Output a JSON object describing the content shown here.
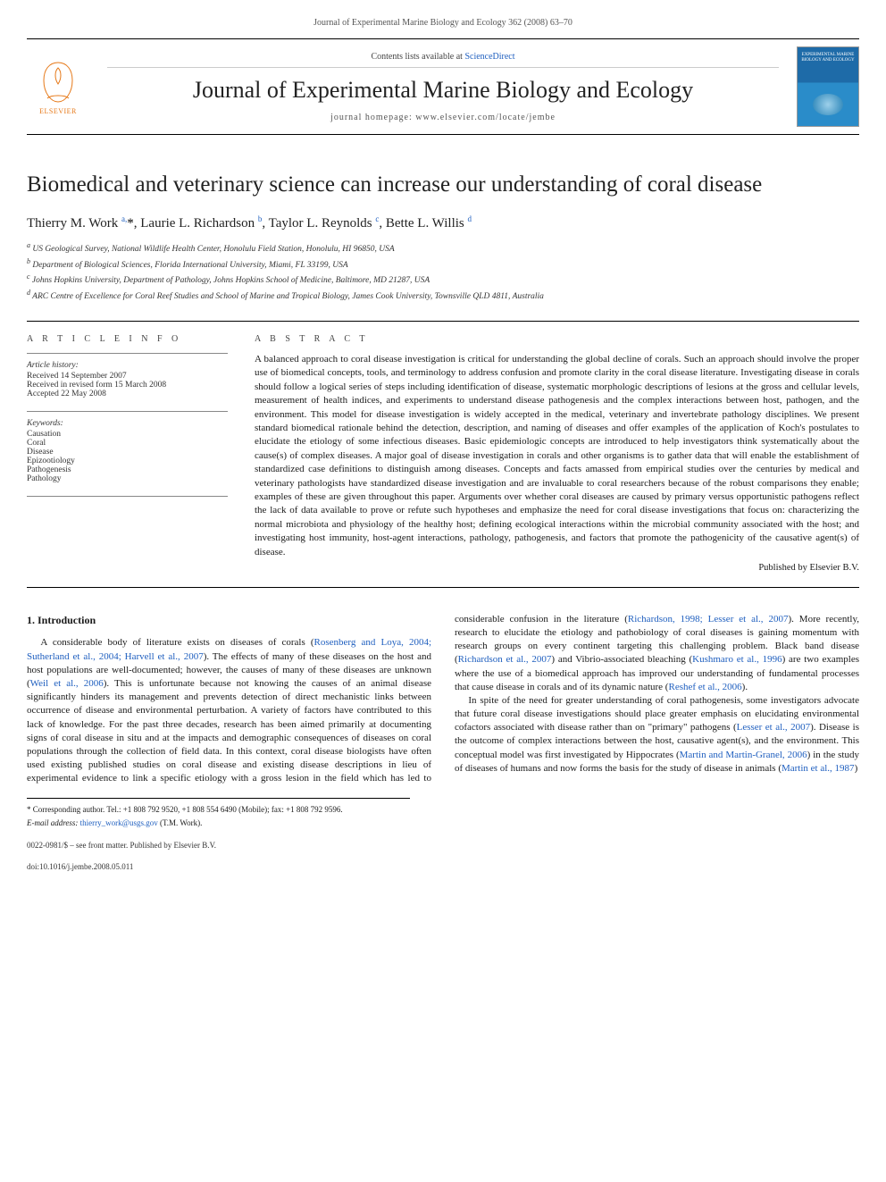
{
  "running_head": "Journal of Experimental Marine Biology and Ecology 362 (2008) 63–70",
  "masthead": {
    "contents_prefix": "Contents lists available at ",
    "contents_link": "ScienceDirect",
    "journal_name": "Journal of Experimental Marine Biology and Ecology",
    "homepage_label": "journal homepage: www.elsevier.com/locate/jembe",
    "publisher_name": "ELSEVIER",
    "cover_text": "EXPERIMENTAL MARINE BIOLOGY AND ECOLOGY"
  },
  "article": {
    "title": "Biomedical and veterinary science can increase our understanding of coral disease",
    "authors_html": "Thierry M. Work <sup class=\"sup-link\">a,</sup><span class=\"star\">*</span>, Laurie L. Richardson <sup class=\"sup-link\">b</sup>, Taylor L. Reynolds <sup class=\"sup-link\">c</sup>, Bette L. Willis <sup class=\"sup-link\">d</sup>",
    "affiliations": [
      "a US Geological Survey, National Wildlife Health Center, Honolulu Field Station, Honolulu, HI 96850, USA",
      "b Department of Biological Sciences, Florida International University, Miami, FL 33199, USA",
      "c Johns Hopkins University, Department of Pathology, Johns Hopkins School of Medicine, Baltimore, MD 21287, USA",
      "d ARC Centre of Excellence for Coral Reef Studies and School of Marine and Tropical Biology, James Cook University, Townsville QLD 4811, Australia"
    ]
  },
  "article_info": {
    "heading": "A R T I C L E   I N F O",
    "history_label": "Article history:",
    "history": [
      "Received 14 September 2007",
      "Received in revised form 15 March 2008",
      "Accepted 22 May 2008"
    ],
    "keywords_label": "Keywords:",
    "keywords": [
      "Causation",
      "Coral",
      "Disease",
      "Epizootiology",
      "Pathogenesis",
      "Pathology"
    ]
  },
  "abstract": {
    "heading": "A B S T R A C T",
    "text": "A balanced approach to coral disease investigation is critical for understanding the global decline of corals. Such an approach should involve the proper use of biomedical concepts, tools, and terminology to address confusion and promote clarity in the coral disease literature. Investigating disease in corals should follow a logical series of steps including identification of disease, systematic morphologic descriptions of lesions at the gross and cellular levels, measurement of health indices, and experiments to understand disease pathogenesis and the complex interactions between host, pathogen, and the environment. This model for disease investigation is widely accepted in the medical, veterinary and invertebrate pathology disciplines. We present standard biomedical rationale behind the detection, description, and naming of diseases and offer examples of the application of Koch's postulates to elucidate the etiology of some infectious diseases. Basic epidemiologic concepts are introduced to help investigators think systematically about the cause(s) of complex diseases. A major goal of disease investigation in corals and other organisms is to gather data that will enable the establishment of standardized case definitions to distinguish among diseases. Concepts and facts amassed from empirical studies over the centuries by medical and veterinary pathologists have standardized disease investigation and are invaluable to coral researchers because of the robust comparisons they enable; examples of these are given throughout this paper. Arguments over whether coral diseases are caused by primary versus opportunistic pathogens reflect the lack of data available to prove or refute such hypotheses and emphasize the need for coral disease investigations that focus on: characterizing the normal microbiota and physiology of the healthy host; defining ecological interactions within the microbial community associated with the host; and investigating host immunity, host-agent interactions, pathology, pathogenesis, and factors that promote the pathogenicity of the causative agent(s) of disease.",
    "published_note": "Published by Elsevier B.V."
  },
  "body": {
    "section_heading": "1. Introduction",
    "p1_pre": "A considerable body of literature exists on diseases of corals (",
    "p1_link1": "Rosenberg and Loya, 2004; Sutherland et al., 2004; Harvell et al., 2007",
    "p1_mid1": "). The effects of many of these diseases on the host and host populations are well-documented; however, the causes of many of these diseases are unknown (",
    "p1_link2": "Weil et al., 2006",
    "p1_post": "). This is unfortunate because not knowing the causes of an animal disease significantly hinders its management and prevents detection of direct mechanistic links between occurrence of disease and environmental perturbation. A variety of factors have contributed to this lack of knowledge. For the past three decades, research has been aimed primarily at documenting signs of coral disease in situ and at the impacts and demographic consequences of diseases on coral populations through the collection of field data. In this context, coral disease biologists have often used",
    "p2_pre": "existing published studies on coral disease and existing disease descriptions in lieu of experimental evidence to link a specific etiology with a gross lesion in the field which has led to considerable confusion in the literature (",
    "p2_link1": "Richardson, 1998; Lesser et al., 2007",
    "p2_mid1": "). More recently, research to elucidate the etiology and pathobiology of coral diseases is gaining momentum with research groups on every continent targeting this challenging problem. Black band disease (",
    "p2_link2": "Richardson et al., 2007",
    "p2_mid2": ") and Vibrio-associated bleaching (",
    "p2_link3": "Kushmaro et al., 1996",
    "p2_mid3": ") are two examples where the use of a biomedical approach has improved our understanding of fundamental processes that cause disease in corals and of its dynamic nature (",
    "p2_link4": "Reshef et al., 2006",
    "p2_post": ").",
    "p3_pre": "In spite of the need for greater understanding of coral pathogenesis, some investigators advocate that future coral disease investigations should place greater emphasis on elucidating environmental cofactors associated with disease rather than on \"primary\" pathogens (",
    "p3_link1": "Lesser et al., 2007",
    "p3_mid1": "). Disease is the outcome of complex interactions between the host, causative agent(s), and the environment. This conceptual model was first investigated by Hippocrates (",
    "p3_link2": "Martin and Martin-Granel, 2006",
    "p3_mid2": ") in the study of diseases of humans and now forms the basis for the study of disease in animals (",
    "p3_link3": "Martin et al., 1987",
    "p3_post": ")"
  },
  "footnotes": {
    "corresponding": "* Corresponding author. Tel.: +1 808 792 9520, +1 808 554 6490 (Mobile); fax: +1 808 792 9596.",
    "email_label": "E-mail address: ",
    "email": "thierry_work@usgs.gov",
    "email_suffix": " (T.M. Work)."
  },
  "footer": {
    "front_matter": "0022-0981/$ – see front matter. Published by Elsevier B.V.",
    "doi": "doi:10.1016/j.jembe.2008.05.011"
  },
  "colors": {
    "link": "#1f5fbf",
    "elsevier_orange": "#e67817",
    "text": "#1a1a1a",
    "muted": "#555555"
  }
}
